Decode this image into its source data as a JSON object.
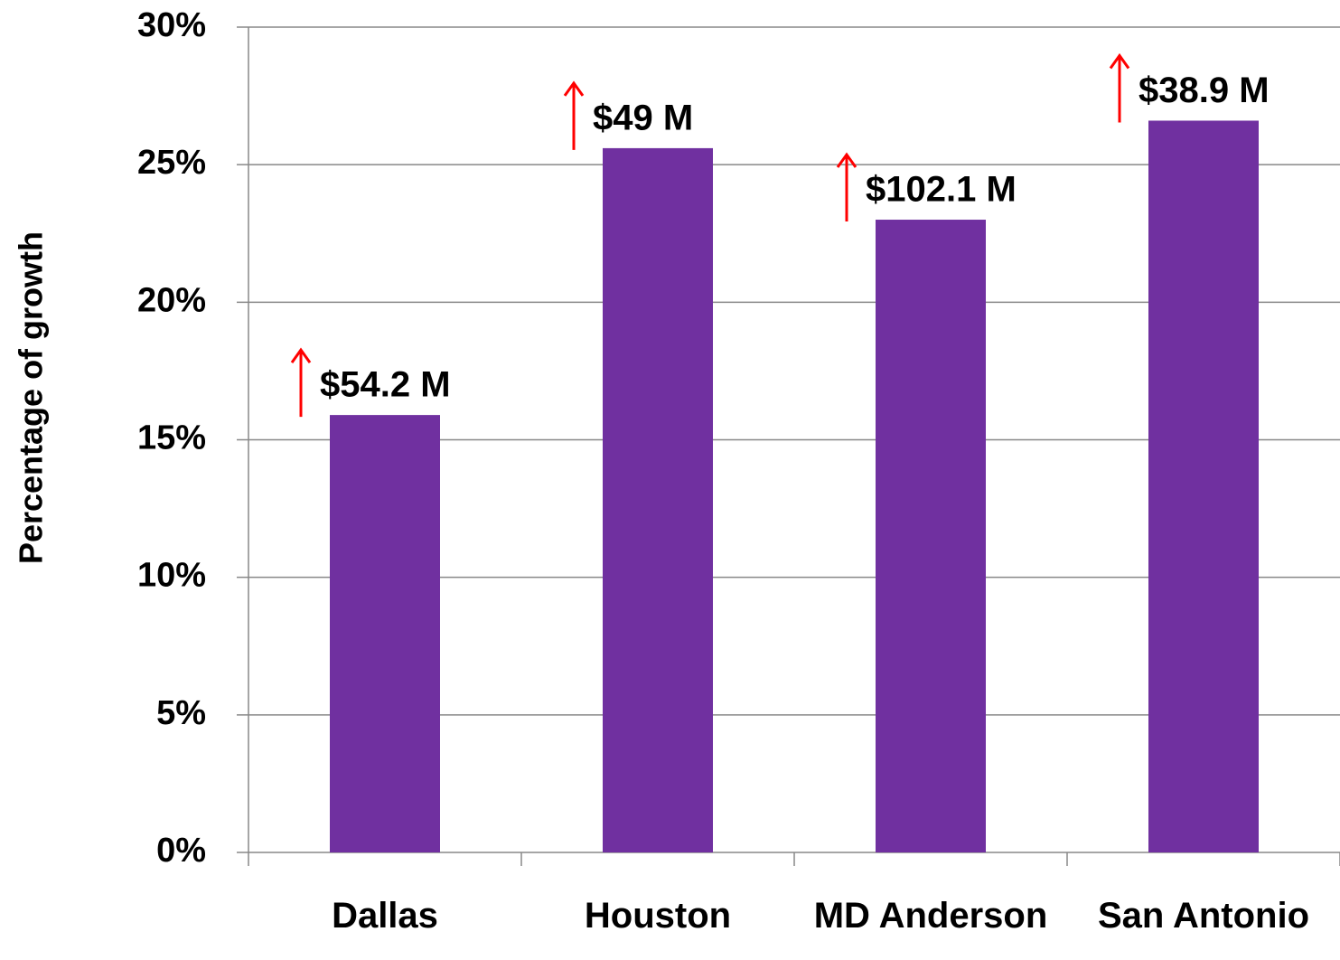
{
  "chart_data": {
    "type": "bar",
    "y_label": "Percentage of growth",
    "categories": [
      "Dallas",
      "Houston",
      "MD Anderson",
      "San Antonio"
    ],
    "values": [
      15.9,
      25.6,
      23.0,
      26.6
    ],
    "annotations": [
      "$54.2 M",
      "$49 M",
      "$102.1 M",
      "$38.9 M"
    ],
    "color": "#7030a0",
    "annotation_arrow_color": "#ff0000",
    "ylim": [
      0,
      30
    ],
    "yticks": [
      {
        "value": 0,
        "label": "0%"
      },
      {
        "value": 5,
        "label": "5%"
      },
      {
        "value": 10,
        "label": "10%"
      },
      {
        "value": 15,
        "label": "15%"
      },
      {
        "value": 20,
        "label": "20%"
      },
      {
        "value": 25,
        "label": "25%"
      },
      {
        "value": 30,
        "label": "30%"
      }
    ],
    "grid": true
  }
}
